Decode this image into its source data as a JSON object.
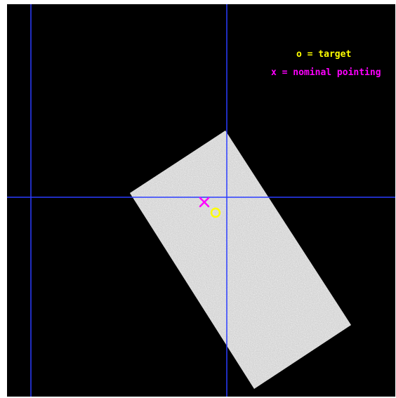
{
  "colors": {
    "background": "#000000",
    "crosshair": "#2a3cff",
    "target": "#ffff00",
    "nominal_pointing": "#ff00ff",
    "detector": "#c9c9c9"
  },
  "legend": {
    "target_label": "o = target",
    "pointing_label": "x = nominal pointing"
  },
  "markers": {
    "target_icon": "circle-marker",
    "pointing_icon": "x-marker"
  }
}
